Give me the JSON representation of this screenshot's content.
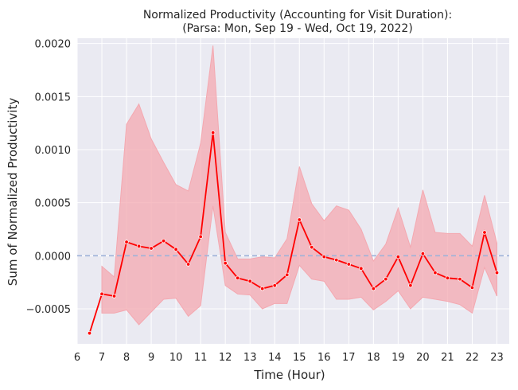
{
  "chart_data": {
    "type": "line",
    "title_line1": "Normalized Productivity (Accounting for Visit Duration):",
    "title_line2": "(Parsa: Mon, Sep 19 - Wed, Oct 19, 2022)",
    "xlabel": "Time (Hour)",
    "ylabel": "Sum of Normalized Productivity",
    "xlim": [
      6,
      23.5
    ],
    "ylim": [
      -0.00083,
      0.00205
    ],
    "x_ticks": [
      6,
      7,
      8,
      9,
      10,
      11,
      12,
      13,
      14,
      15,
      16,
      17,
      18,
      19,
      20,
      21,
      22,
      23
    ],
    "x_tick_labels": [
      "6",
      "7",
      "8",
      "9",
      "10",
      "11",
      "12",
      "13",
      "14",
      "15",
      "16",
      "17",
      "18",
      "19",
      "20",
      "21",
      "22",
      "23"
    ],
    "y_ticks": [
      -0.0005,
      0.0,
      0.0005,
      0.001,
      0.0015,
      0.002
    ],
    "y_tick_labels": [
      "−0.0005",
      "0.0000",
      "0.0005",
      "0.0010",
      "0.0015",
      "0.0020"
    ],
    "grid": true,
    "reference_line": {
      "y": 0.0,
      "style": "dashed",
      "color": "#9fb3d9"
    },
    "colors": {
      "line": "#ff0000",
      "band": "#f4a8b0",
      "plot_background": "#eaeaf2",
      "grid": "#ffffff",
      "marker_edge": "#ffffff"
    },
    "series": [
      {
        "x": [
          6.5,
          7.0,
          7.5,
          8.0,
          8.5,
          9.0,
          9.5,
          10.0,
          10.5,
          11.0,
          11.5,
          12.0,
          12.5,
          13.0,
          13.5,
          14.0,
          14.5,
          15.0,
          15.5,
          16.0,
          16.5,
          17.0,
          17.5,
          18.0,
          18.5,
          19.0,
          19.5,
          20.0,
          20.5,
          21.0,
          21.5,
          22.0,
          22.5,
          23.0
        ],
        "y": [
          -0.00073,
          -0.00036,
          -0.00038,
          0.00013,
          9e-05,
          7e-05,
          0.00014,
          6e-05,
          -8e-05,
          0.00018,
          0.00116,
          -7e-05,
          -0.00021,
          -0.00024,
          -0.00031,
          -0.00028,
          -0.00018,
          0.00034,
          8e-05,
          -1e-05,
          -4e-05,
          -8e-05,
          -0.00012,
          -0.00031,
          -0.00022,
          -1e-05,
          -0.00028,
          2e-05,
          -0.00016,
          -0.00021,
          -0.00022,
          -0.0003,
          0.00022,
          -0.00016
        ],
        "ci_lower": [
          null,
          -0.00054,
          -0.00054,
          -0.00051,
          -0.00065,
          -0.00053,
          -0.00041,
          -0.0004,
          -0.00057,
          -0.00047,
          0.00047,
          -0.00028,
          -0.00036,
          -0.00037,
          -0.0005,
          -0.00045,
          -0.00045,
          -9e-05,
          -0.00022,
          -0.00024,
          -0.00041,
          -0.00041,
          -0.00039,
          -0.00051,
          -0.00043,
          -0.00033,
          -0.0005,
          -0.00039,
          -0.00041,
          -0.00043,
          -0.00046,
          -0.00054,
          -0.00011,
          -0.00038
        ],
        "ci_upper": [
          null,
          -0.0001,
          -0.0002,
          0.00124,
          0.00143,
          0.0011,
          0.00088,
          0.00067,
          0.00061,
          0.00106,
          0.00198,
          0.00022,
          -3e-05,
          -3e-05,
          -1e-05,
          -2e-05,
          0.00016,
          0.00084,
          0.00049,
          0.00033,
          0.00047,
          0.00043,
          0.00025,
          -5e-05,
          0.00011,
          0.00045,
          8e-05,
          0.00062,
          0.00022,
          0.00021,
          0.00021,
          9e-05,
          0.00057,
          0.00012
        ]
      }
    ]
  }
}
